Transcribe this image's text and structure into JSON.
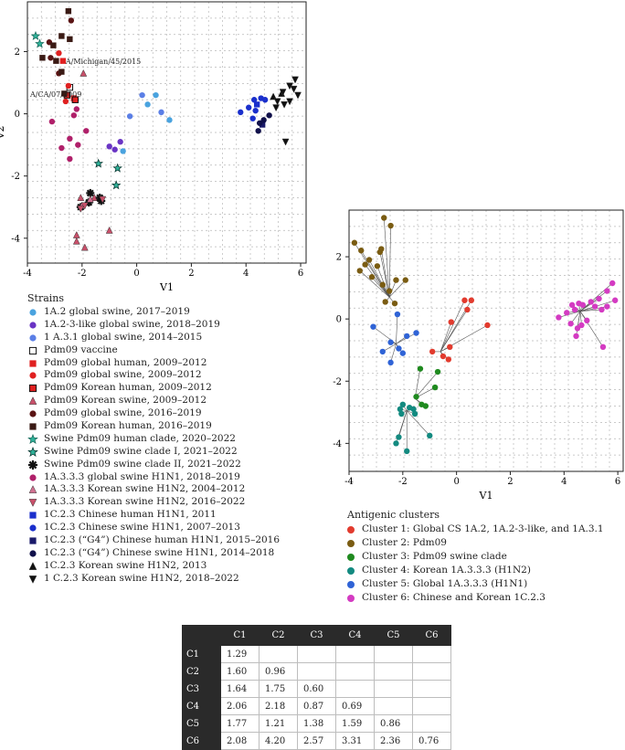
{
  "chart_data": [
    {
      "type": "scatter",
      "xlabel": "V1",
      "ylabel": "V2",
      "xlim": [
        -4,
        6.2
      ],
      "ylim": [
        -4.8,
        3.6
      ],
      "xticks": [
        -4,
        -2,
        0,
        2,
        4,
        6
      ],
      "yticks": [
        -4,
        -2,
        0,
        2
      ],
      "grid": true,
      "annotations": [
        {
          "text": "A/Michigan/45/2015",
          "x": -2.6,
          "y": 1.6
        },
        {
          "text": "A/CA/07/2009",
          "x": -3.9,
          "y": 0.55
        }
      ],
      "legend_title": "Strains",
      "series": [
        {
          "name": "1A.2 global swine, 2017–2019",
          "marker": "circle",
          "color": "#4aa3df",
          "points": [
            [
              -0.5,
              -1.2
            ],
            [
              1.2,
              -0.2
            ],
            [
              0.7,
              0.6
            ],
            [
              0.4,
              0.3
            ]
          ]
        },
        {
          "name": "1A.2-3-like global swine, 2018–2019",
          "marker": "circle",
          "color": "#6a34c4",
          "points": [
            [
              -1.0,
              -1.05
            ],
            [
              -0.8,
              -1.15
            ],
            [
              -0.6,
              -0.9
            ]
          ]
        },
        {
          "name": "1 A.3.1 global swine, 2014–2015",
          "marker": "circle",
          "color": "#5b7fe6",
          "points": [
            [
              -0.25,
              -0.08
            ],
            [
              0.2,
              0.6
            ],
            [
              0.9,
              0.05
            ]
          ]
        },
        {
          "name": "Pdm09 vaccine",
          "marker": "square-open",
          "color": "#111111",
          "points": [
            [
              -2.45,
              0.85
            ]
          ]
        },
        {
          "name": "Pdm09 global human, 2009–2012",
          "marker": "square",
          "color": "#e02020",
          "points": [
            [
              -2.7,
              1.7
            ],
            [
              -2.3,
              0.5
            ]
          ]
        },
        {
          "name": "Pdm09 global swine, 2009–2012",
          "marker": "circle",
          "color": "#e02020",
          "points": [
            [
              -2.5,
              0.9
            ],
            [
              -2.85,
              1.95
            ],
            [
              -2.6,
              0.4
            ]
          ]
        },
        {
          "name": "Pdm09 Korean human, 2009–2012",
          "marker": "square-red",
          "color": "#b01010",
          "points": [
            [
              -2.25,
              0.45
            ],
            [
              -2.55,
              0.6
            ]
          ]
        },
        {
          "name": "Pdm09 Korean swine, 2009–2012",
          "marker": "triangle",
          "color": "#c8506a",
          "points": [
            [
              -1.95,
              1.3
            ],
            [
              -2.05,
              -2.7
            ],
            [
              -1.55,
              -2.7
            ],
            [
              -2.2,
              -3.9
            ],
            [
              -2.2,
              -4.1
            ],
            [
              -1.9,
              -4.3
            ],
            [
              -1.0,
              -3.75
            ],
            [
              -1.8,
              -2.85
            ]
          ]
        },
        {
          "name": "Pdm09 global swine, 2016–2019",
          "marker": "circle",
          "color": "#5a1414",
          "points": [
            [
              -2.4,
              3.0
            ],
            [
              -3.2,
              2.3
            ],
            [
              -2.85,
              1.3
            ],
            [
              -3.15,
              1.8
            ]
          ]
        },
        {
          "name": "Pdm09 Korean human, 2016–2019",
          "marker": "square",
          "color": "#3a1a14",
          "points": [
            [
              -2.5,
              3.3
            ],
            [
              -2.45,
              2.4
            ],
            [
              -3.05,
              2.2
            ],
            [
              -2.75,
              2.5
            ],
            [
              -3.45,
              1.8
            ],
            [
              -2.95,
              1.7
            ],
            [
              -2.75,
              1.35
            ],
            [
              -2.65,
              0.65
            ]
          ]
        },
        {
          "name": "Swine Pdm09 human clade, 2020–2022",
          "marker": "star",
          "color": "#2fb39a",
          "points": [
            [
              -3.7,
              2.5
            ],
            [
              -3.55,
              2.25
            ]
          ]
        },
        {
          "name": "Swine Pdm09 swine clade I, 2021–2022",
          "marker": "star-dark",
          "color": "#2fb39a",
          "points": [
            [
              -1.4,
              -1.6
            ],
            [
              -0.7,
              -1.75
            ],
            [
              -0.75,
              -2.3
            ]
          ]
        },
        {
          "name": "Swine Pdm09 swine clade II, 2021–2022",
          "marker": "asterisk",
          "color": "#111111",
          "points": [
            [
              -1.7,
              -2.55
            ],
            [
              -1.35,
              -2.7
            ],
            [
              -1.3,
              -2.8
            ],
            [
              -2.05,
              -3.0
            ],
            [
              -1.75,
              -2.85
            ]
          ]
        },
        {
          "name": "1A.3.3.3 global swine H1N1, 2018–2019",
          "marker": "circle",
          "color": "#b0206a",
          "points": [
            [
              -3.1,
              -0.25
            ],
            [
              -2.75,
              -1.1
            ],
            [
              -2.45,
              -0.8
            ],
            [
              -2.15,
              -1.0
            ],
            [
              -2.45,
              -1.45
            ],
            [
              -1.85,
              -0.55
            ],
            [
              -2.2,
              0.15
            ],
            [
              -2.3,
              -0.05
            ]
          ]
        },
        {
          "name": "1A.3.3.3 Korean swine H1N2, 2004–2012",
          "marker": "triangle",
          "color": "#d07090",
          "points": [
            [
              -2.0,
              -2.95
            ],
            [
              -1.7,
              -2.75
            ]
          ]
        },
        {
          "name": "1A.3.3.3 Korean swine H1N2, 2016–2022",
          "marker": "triangle-down",
          "color": "#c8506a",
          "points": [
            [
              -2.05,
              -3.05
            ],
            [
              -1.9,
              -2.95
            ],
            [
              -1.25,
              -2.75
            ]
          ]
        },
        {
          "name": "1C.2.3 Chinese human H1N1, 2011",
          "marker": "square",
          "color": "#1a2fcc",
          "points": [
            [
              4.4,
              0.3
            ]
          ]
        },
        {
          "name": "1C.2.3 Chinese swine H1N1, 2007–2013",
          "marker": "circle",
          "color": "#1a2fcc",
          "points": [
            [
              3.8,
              0.05
            ],
            [
              4.1,
              0.2
            ],
            [
              4.3,
              0.45
            ],
            [
              4.55,
              0.5
            ],
            [
              4.7,
              0.45
            ],
            [
              4.25,
              -0.15
            ],
            [
              4.35,
              0.1
            ]
          ]
        },
        {
          "name": "1C.2.3 (“G4”) Chinese human H1N1, 2015–2016",
          "marker": "square",
          "color": "#1a1a6a",
          "points": [
            [
              4.6,
              -0.35
            ]
          ]
        },
        {
          "name": "1C.2.3 (“G4”) Chinese swine H1N1, 2014–2018",
          "marker": "circle",
          "color": "#10104a",
          "points": [
            [
              4.5,
              -0.3
            ],
            [
              4.65,
              -0.2
            ],
            [
              4.45,
              -0.55
            ],
            [
              4.85,
              -0.05
            ]
          ]
        },
        {
          "name": "1C.2.3 Korean swine H1N2, 2013",
          "marker": "triangle",
          "color": "#111111",
          "points": [
            [
              5.0,
              0.55
            ],
            [
              5.3,
              0.65
            ]
          ]
        },
        {
          "name": "1 C.2.3 Korean swine H1N2, 2018–2022",
          "marker": "triangle-down",
          "color": "#111111",
          "points": [
            [
              5.8,
              1.1
            ],
            [
              5.6,
              0.9
            ],
            [
              5.35,
              0.7
            ],
            [
              5.15,
              0.4
            ],
            [
              5.6,
              0.4
            ],
            [
              5.4,
              0.3
            ],
            [
              5.9,
              0.6
            ],
            [
              5.75,
              0.8
            ],
            [
              5.45,
              -0.9
            ],
            [
              5.1,
              0.2
            ]
          ]
        }
      ]
    },
    {
      "type": "scatter",
      "xlabel": "V1",
      "ylabel": "V2",
      "xlim": [
        -4,
        6.2
      ],
      "ylim": [
        -4.9,
        3.5
      ],
      "xticks": [
        -4,
        -2,
        0,
        2,
        4,
        6
      ],
      "yticks": [
        -4,
        -2,
        0,
        2
      ],
      "grid": true,
      "legend_title": "Antigenic clusters",
      "series": [
        {
          "name": "Cluster 1: Global CS 1A.2, 1A.2-3-like, and 1A.3.1",
          "color": "#e23b2e",
          "center": [
            -0.6,
            -1.05
          ],
          "points": [
            [
              0.3,
              0.6
            ],
            [
              0.55,
              0.6
            ],
            [
              1.15,
              -0.2
            ],
            [
              0.4,
              0.3
            ],
            [
              -0.2,
              -0.1
            ],
            [
              -0.25,
              -0.9
            ],
            [
              -0.9,
              -1.05
            ],
            [
              -0.5,
              -1.2
            ],
            [
              -0.3,
              -1.3
            ]
          ]
        },
        {
          "name": "Cluster 2: Pdm09",
          "color": "#7a5c12",
          "center": [
            -2.5,
            0.7
          ],
          "points": [
            [
              -3.8,
              2.45
            ],
            [
              -3.55,
              2.2
            ],
            [
              -3.25,
              1.9
            ],
            [
              -2.7,
              3.25
            ],
            [
              -2.45,
              3.0
            ],
            [
              -2.8,
              2.25
            ],
            [
              -2.85,
              2.15
            ],
            [
              -3.6,
              1.55
            ],
            [
              -3.15,
              1.35
            ],
            [
              -2.25,
              1.25
            ],
            [
              -1.9,
              1.25
            ],
            [
              -2.95,
              1.7
            ],
            [
              -2.5,
              0.9
            ],
            [
              -2.3,
              0.5
            ],
            [
              -2.65,
              0.55
            ],
            [
              -2.75,
              1.1
            ],
            [
              -3.4,
              1.75
            ]
          ]
        },
        {
          "name": "Cluster 3: Pdm09 swine clade",
          "color": "#1f8a1f",
          "center": [
            -1.55,
            -2.55
          ],
          "points": [
            [
              -1.35,
              -1.6
            ],
            [
              -0.7,
              -1.7
            ],
            [
              -0.8,
              -2.2
            ],
            [
              -1.3,
              -2.75
            ],
            [
              -1.15,
              -2.8
            ],
            [
              -1.5,
              -2.5
            ]
          ]
        },
        {
          "name": "Cluster 4: Korean 1A.3.3.3 (H1N2)",
          "color": "#138a80",
          "center": [
            -1.85,
            -2.95
          ],
          "points": [
            [
              -2.1,
              -2.9
            ],
            [
              -2.05,
              -3.05
            ],
            [
              -2.15,
              -3.8
            ],
            [
              -2.25,
              -4.0
            ],
            [
              -1.85,
              -4.25
            ],
            [
              -1.0,
              -3.75
            ],
            [
              -1.6,
              -2.9
            ],
            [
              -1.75,
              -2.85
            ],
            [
              -2.0,
              -2.75
            ],
            [
              -1.55,
              -3.05
            ]
          ]
        },
        {
          "name": "Cluster 5: Global 1A.3.3.3 (H1N1)",
          "color": "#2f63d6",
          "center": [
            -2.25,
            -0.8
          ],
          "points": [
            [
              -3.1,
              -0.25
            ],
            [
              -2.75,
              -1.05
            ],
            [
              -2.45,
              -0.75
            ],
            [
              -2.15,
              -0.95
            ],
            [
              -2.45,
              -1.4
            ],
            [
              -1.85,
              -0.55
            ],
            [
              -2.2,
              0.15
            ],
            [
              -1.5,
              -0.45
            ],
            [
              -2.0,
              -1.1
            ]
          ]
        },
        {
          "name": "Cluster 6: Chinese and Korean 1C.2.3",
          "color": "#d43bc2",
          "center": [
            4.6,
            0.25
          ],
          "points": [
            [
              3.8,
              0.05
            ],
            [
              4.1,
              0.2
            ],
            [
              4.3,
              0.45
            ],
            [
              4.55,
              0.5
            ],
            [
              4.7,
              0.45
            ],
            [
              5.0,
              0.55
            ],
            [
              5.3,
              0.65
            ],
            [
              5.6,
              0.9
            ],
            [
              5.8,
              1.15
            ],
            [
              5.6,
              0.4
            ],
            [
              5.4,
              0.3
            ],
            [
              5.9,
              0.6
            ],
            [
              5.45,
              -0.9
            ],
            [
              4.5,
              -0.3
            ],
            [
              4.65,
              -0.2
            ],
            [
              4.45,
              -0.55
            ],
            [
              4.85,
              -0.05
            ],
            [
              4.4,
              0.3
            ],
            [
              4.25,
              -0.15
            ],
            [
              5.15,
              0.4
            ]
          ]
        }
      ]
    },
    {
      "type": "table",
      "columns": [
        "",
        "C1",
        "C2",
        "C3",
        "C4",
        "C5",
        "C6"
      ],
      "rows": [
        [
          "C1",
          "1.29",
          "",
          "",
          "",
          "",
          ""
        ],
        [
          "C2",
          "1.60",
          "0.96",
          "",
          "",
          "",
          ""
        ],
        [
          "C3",
          "1.64",
          "1.75",
          "0.60",
          "",
          "",
          ""
        ],
        [
          "C4",
          "2.06",
          "2.18",
          "0.87",
          "0.69",
          "",
          ""
        ],
        [
          "C5",
          "1.77",
          "1.21",
          "1.38",
          "1.59",
          "0.86",
          ""
        ],
        [
          "C6",
          "2.08",
          "4.20",
          "2.57",
          "3.31",
          "2.36",
          "0.76"
        ]
      ]
    }
  ]
}
